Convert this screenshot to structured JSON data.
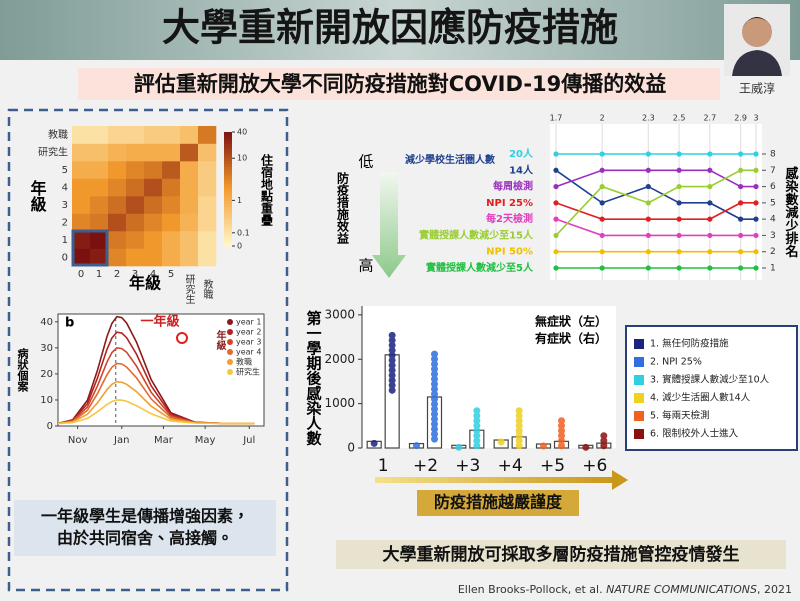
{
  "header": {
    "title": "大學重新開放因應防疫措施",
    "presenter": "王威淳"
  },
  "subtitle": "評估重新開放大學不同防疫措施對COVID-19傳播的效益",
  "note": [
    "一年級學生是傳播增強因素，",
    "由於共同宿舍、高接觸。"
  ],
  "conclusion": "大學重新開放可採取多層防疫措施管控疫情發生",
  "citation": [
    "Ellen Brooks-Pollock, et al. ",
    "NATURE COMMUNICATIONS",
    ", 2021"
  ],
  "chart_data": [
    {
      "type": "heatmap",
      "xlabel": "年級",
      "ylabel": "年級",
      "colorbar_label": "住宿地點重疊",
      "categories": [
        "0",
        "1",
        "2",
        "3",
        "4",
        "5",
        "研究生",
        "教職"
      ],
      "values": [
        [
          40,
          30,
          3,
          2,
          2,
          1,
          0.5,
          0.1
        ],
        [
          30,
          40,
          4,
          3,
          2,
          1,
          0.5,
          0.1
        ],
        [
          3,
          4,
          10,
          5,
          3,
          2,
          0.8,
          0.2
        ],
        [
          2,
          3,
          5,
          10,
          5,
          3,
          1,
          0.2
        ],
        [
          2,
          2,
          3,
          5,
          10,
          4,
          1,
          0.3
        ],
        [
          1,
          1,
          2,
          3,
          4,
          8,
          1,
          0.3
        ],
        [
          0.5,
          0.5,
          0.8,
          1,
          1,
          1,
          8,
          0.5
        ],
        [
          0.1,
          0.1,
          0.2,
          0.2,
          0.3,
          0.3,
          0.5,
          4
        ]
      ],
      "colorbar_ticks": [
        0,
        0.1,
        1,
        10,
        40
      ],
      "colors": [
        "#fff6c8",
        "#f39a2c",
        "#7a1010"
      ]
    },
    {
      "type": "line",
      "panel": "b",
      "ylabel": "病狀個案",
      "legend_title": "年級",
      "annotation": "一年級",
      "x": [
        0,
        3,
        6,
        8,
        10,
        11,
        12,
        13,
        14,
        16,
        19,
        23,
        28,
        34,
        40
      ],
      "series": [
        {
          "name": "year 1",
          "color": "#8b1a1a",
          "values": [
            1,
            2.4,
            9.9,
            21.1,
            34.4,
            39.4,
            42,
            41.6,
            39.5,
            32.2,
            17.8,
            5.1,
            1.4,
            1,
            1
          ]
        },
        {
          "name": "year 2",
          "color": "#b22222",
          "values": [
            1,
            2.2,
            8.6,
            18.2,
            29.5,
            33.8,
            36,
            35.7,
            33.9,
            27.6,
            15.4,
            4.5,
            1.4,
            1,
            1
          ]
        },
        {
          "name": "year 3",
          "color": "#d2452a",
          "values": [
            1,
            2,
            7.3,
            15.2,
            24.6,
            28.2,
            30,
            29.7,
            28.3,
            23,
            12.9,
            3.9,
            1.3,
            1,
            1
          ]
        },
        {
          "name": "year 4",
          "color": "#e06a30",
          "values": [
            1,
            1.8,
            6,
            12.3,
            19.7,
            22.6,
            24,
            23.8,
            22.6,
            18.5,
            10.4,
            3.3,
            1.2,
            1,
            1
          ]
        },
        {
          "name": "教職",
          "color": "#f0a030",
          "values": [
            1,
            1.6,
            4.5,
            8.8,
            14,
            16,
            17,
            16.8,
            16,
            13.2,
            7.6,
            2.6,
            1.2,
            1,
            1
          ]
        },
        {
          "name": "研究生",
          "color": "#f5c842",
          "values": [
            1,
            1.3,
            2.9,
            5.4,
            8.3,
            9.4,
            10,
            9.9,
            9.5,
            7.8,
            4.7,
            1.9,
            1.1,
            1,
            1
          ]
        }
      ],
      "xlim": [
        0,
        42
      ],
      "xticks": [
        {
          "value": 4,
          "label": "Nov"
        },
        {
          "value": 13,
          "label": "Jan"
        },
        {
          "value": 21.5,
          "label": "Mar"
        },
        {
          "value": 30,
          "label": "May"
        },
        {
          "value": 39,
          "label": "Jul"
        }
      ],
      "ylim": [
        0,
        43
      ],
      "yticks": [
        0,
        10,
        20,
        30,
        40
      ]
    },
    {
      "type": "rank",
      "group_label": "減少學校生活圈人數",
      "y_top_label": "低",
      "y_bottom_label": "高",
      "ylabel": "防疫措施效益",
      "y2label": "感染數減少排名",
      "x": [
        1.7,
        2,
        2.3,
        2.5,
        2.7,
        2.9,
        3
      ],
      "xlim": [
        1.7,
        3
      ],
      "xticks": [
        1.7,
        2,
        2.3,
        2.5,
        2.7,
        2.9,
        3
      ],
      "ylim": [
        1,
        8
      ],
      "yticks": [
        1,
        2,
        3,
        4,
        5,
        6,
        7,
        8
      ],
      "series": [
        {
          "name": "20人",
          "color": "#2fd0e0",
          "values": [
            8,
            8,
            8,
            8,
            8,
            8,
            8
          ]
        },
        {
          "name": "14人",
          "color": "#1f3f8f",
          "values": [
            7,
            5,
            6,
            5,
            5,
            4,
            4
          ]
        },
        {
          "name": "每周檢測",
          "color": "#9b2fc0",
          "values": [
            6,
            7,
            7,
            7,
            7,
            6,
            6
          ]
        },
        {
          "name": "NPI 25%",
          "color": "#e02020",
          "values": [
            5,
            4,
            4,
            4,
            4,
            5,
            5
          ]
        },
        {
          "name": "每2天檢測",
          "color": "#e040c0",
          "values": [
            4,
            3,
            3,
            3,
            3,
            3,
            3
          ]
        },
        {
          "name": "實體授課人數減少至15人",
          "color": "#9acd32",
          "values": [
            3,
            6,
            5,
            6,
            6,
            7,
            7
          ]
        },
        {
          "name": "NPI 50%",
          "color": "#f0c000",
          "values": [
            2,
            2,
            2,
            2,
            2,
            2,
            2
          ]
        },
        {
          "name": "實體授課人數減少至5人",
          "color": "#20c040",
          "values": [
            1,
            1,
            1,
            1,
            1,
            1,
            1
          ]
        }
      ]
    },
    {
      "type": "bar",
      "ylabel": "第一學期後感染人數",
      "xlabel": "防疫措施越嚴謹度",
      "categories": [
        "1",
        "+2",
        "+3",
        "+4",
        "+5",
        "+6"
      ],
      "colors": [
        "#1a237e",
        "#2f6fe0",
        "#2fd0e0",
        "#f0d020",
        "#f06020",
        "#8b1010"
      ],
      "measures": [
        "1. 無任何防疫措施",
        "2. NPI 25%",
        "3. 實體授課人數減少至10人",
        "4. 減少生活圈人數14人",
        "5. 每兩天檢測",
        "6. 限制校外人士進入"
      ],
      "series": [
        {
          "name": "無症狀（左）",
          "values": [
            150,
            100,
            60,
            180,
            90,
            60
          ]
        },
        {
          "name": "有症狀（右）",
          "values": [
            2100,
            1150,
            400,
            250,
            150,
            110
          ]
        }
      ],
      "spread_low": [
        1300,
        200,
        50,
        50,
        50,
        50
      ],
      "spread_high": [
        2600,
        2150,
        900,
        900,
        700,
        350
      ],
      "ylim": [
        0,
        3200
      ],
      "yticks": [
        0,
        1000,
        2000,
        3000
      ]
    }
  ]
}
